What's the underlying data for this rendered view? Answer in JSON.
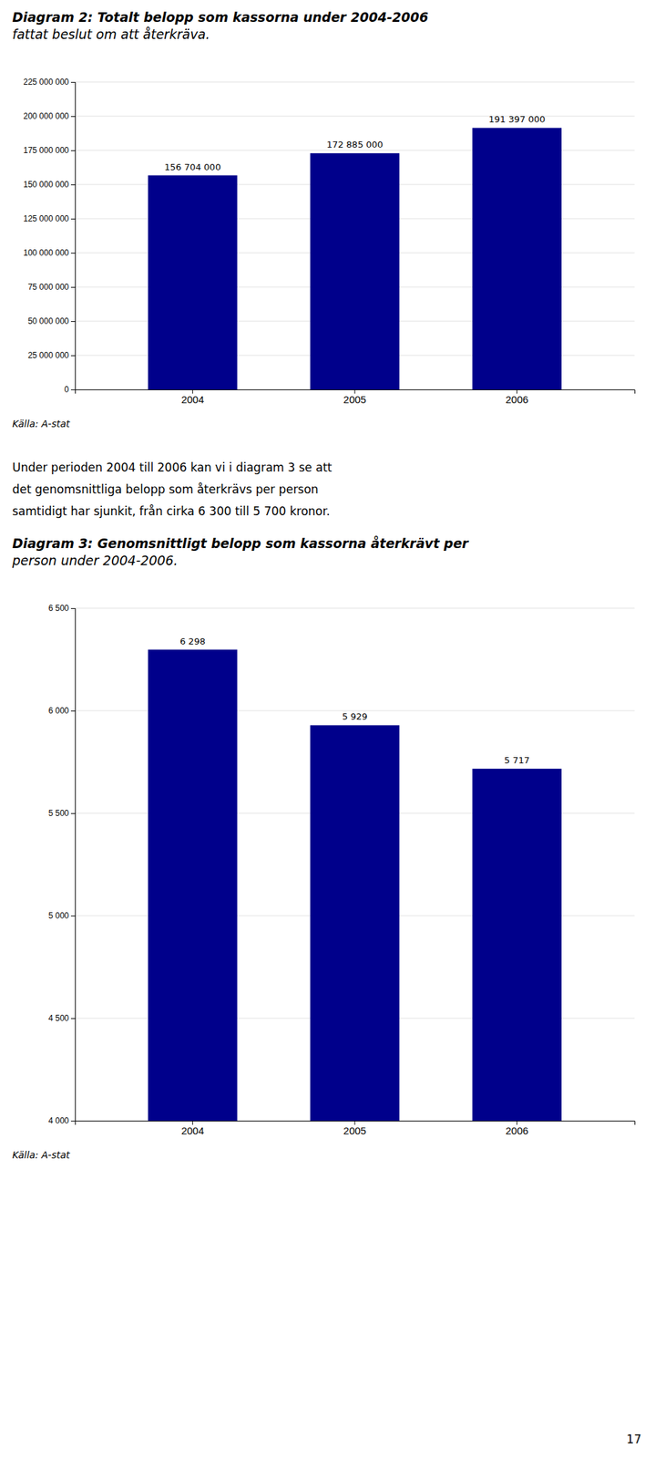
{
  "chart_data": [
    {
      "type": "bar",
      "title": "Diagram 2: Totalt belopp som kassorna under 2004-2006\nfattat beslut om att återkräva.",
      "categories": [
        "2004",
        "2005",
        "2006"
      ],
      "values": [
        156704000,
        172885000,
        191397000
      ],
      "value_labels": [
        "156 704 000",
        "172 885 000",
        "191 397 000"
      ],
      "data_labels": true,
      "color": "#00008B",
      "ylim": [
        0,
        225000000
      ],
      "yticks": [
        0,
        {
          "value": 25000000,
          "label": "25 000 000"
        },
        {
          "value": 50000000,
          "label": "50 000 000"
        },
        {
          "value": 75000000,
          "label": "75 000 000"
        },
        {
          "value": 100000000,
          "label": "100 000 000"
        },
        {
          "value": 125000000,
          "label": "125 000 000"
        },
        {
          "value": 150000000,
          "label": "150 000 000"
        },
        {
          "value": 175000000,
          "label": "175 000 000"
        },
        {
          "value": 200000000,
          "label": "200 000 000"
        },
        {
          "value": 225000000,
          "label": "225 000 000"
        }
      ],
      "grid": true,
      "annotations": [
        "Källa: A-stat"
      ]
    },
    {
      "type": "bar",
      "title": "Diagram 3: Genomsnittligt belopp som kassorna återkrävt per\nperson under 2004-2006.",
      "categories": [
        "2004",
        "2005",
        "2006"
      ],
      "values": [
        6298,
        5929,
        5717
      ],
      "value_labels": [
        "6 298",
        "5 929",
        "5 717"
      ],
      "data_labels": true,
      "color": "#00008B",
      "ylim": [
        4000,
        6500
      ],
      "yticks": [
        {
          "value": 4000,
          "label": "4 000"
        },
        {
          "value": 4500,
          "label": "4 500"
        },
        {
          "value": 5000,
          "label": "5 000"
        },
        {
          "value": 5500,
          "label": "5 500"
        },
        {
          "value": 6000,
          "label": "6 000"
        },
        {
          "value": 6500,
          "label": "6 500"
        }
      ],
      "grid": true,
      "annotations": [
        "Källa: A-stat"
      ]
    }
  ],
  "body_text": [
    "Under perioden 2004 till 2006 kan vi i diagram 3 se att",
    "det genomsnittliga belopp som återkrävs per person",
    "samtidigt har sjunkit, från cirka 6 300 till 5 700 kronor."
  ],
  "page_number": "17"
}
